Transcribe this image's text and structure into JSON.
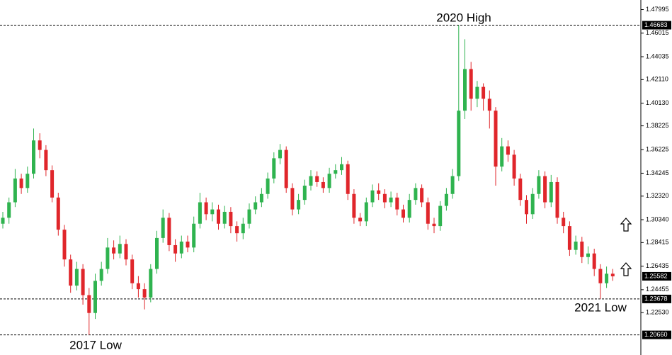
{
  "chart_data": {
    "type": "candlestick",
    "up_color": "#2fb34f",
    "down_color": "#e0262b",
    "ylim": [
      1.201,
      1.488
    ],
    "yticks": [
      1.47995,
      1.46015,
      1.44035,
      {
        "value": 1.4211,
        "label": "1.42110"
      },
      {
        "value": 1.4013,
        "label": "1.40130"
      },
      1.38225,
      1.36225,
      1.34245,
      {
        "value": 1.3232,
        "label": "1.32320"
      },
      {
        "value": 1.3034,
        "label": "1.30340"
      },
      1.28415,
      1.26435,
      1.24455,
      {
        "value": 1.2253,
        "label": "1.22530"
      }
    ],
    "levels": [
      1.46683,
      1.23678,
      {
        "value": 1.2066,
        "label": "1.20660"
      }
    ],
    "annotations": [
      "2020 High",
      "2021 Low",
      "2017 Low"
    ],
    "open": [
      1.3,
      1.305,
      1.318,
      1.338,
      1.33,
      1.342,
      1.37,
      1.362,
      1.345,
      1.322,
      1.295,
      1.27,
      1.248,
      1.262,
      1.24,
      1.225,
      1.252,
      1.262,
      1.28,
      1.275,
      1.283,
      1.27,
      1.25,
      1.245,
      1.238,
      1.262,
      1.288,
      1.305,
      1.282,
      1.275,
      1.285,
      1.28,
      1.3,
      1.318,
      1.308,
      1.312,
      1.3,
      1.31,
      1.298,
      1.292,
      1.3,
      1.312,
      1.318,
      1.325,
      1.338,
      1.355,
      1.362,
      1.33,
      1.312,
      1.32,
      1.332,
      1.34,
      1.335,
      1.33,
      1.342,
      1.345,
      1.35,
      1.325,
      1.305,
      1.302,
      1.318,
      1.328,
      1.325,
      1.318,
      1.322,
      1.312,
      1.305,
      1.32,
      1.33,
      1.318,
      1.3,
      1.298,
      1.315,
      1.325,
      1.34,
      1.395,
      1.43,
      1.405,
      1.415,
      1.405,
      1.395,
      1.348,
      1.365,
      1.358,
      1.338,
      1.32,
      1.308,
      1.325,
      1.34,
      1.318,
      1.335,
      1.305,
      1.298,
      1.278,
      1.285,
      1.272,
      1.275,
      1.262,
      1.25,
      1.258
    ],
    "high": [
      1.31,
      1.322,
      1.346,
      1.342,
      1.348,
      1.38,
      1.376,
      1.366,
      1.349,
      1.326,
      1.299,
      1.274,
      1.268,
      1.266,
      1.246,
      1.258,
      1.268,
      1.288,
      1.286,
      1.29,
      1.287,
      1.274,
      1.256,
      1.25,
      1.266,
      1.294,
      1.312,
      1.309,
      1.287,
      1.29,
      1.29,
      1.306,
      1.326,
      1.322,
      1.318,
      1.316,
      1.315,
      1.314,
      1.302,
      1.305,
      1.317,
      1.323,
      1.33,
      1.343,
      1.36,
      1.367,
      1.365,
      1.334,
      1.325,
      1.337,
      1.345,
      1.344,
      1.339,
      1.347,
      1.35,
      1.356,
      1.353,
      1.329,
      1.309,
      1.322,
      1.333,
      1.334,
      1.329,
      1.327,
      1.326,
      1.316,
      1.325,
      1.334,
      1.333,
      1.322,
      1.305,
      1.319,
      1.33,
      1.346,
      1.46683,
      1.455,
      1.436,
      1.42,
      1.418,
      1.412,
      1.398,
      1.372,
      1.37,
      1.362,
      1.342,
      1.324,
      1.33,
      1.345,
      1.344,
      1.341,
      1.339,
      1.31,
      1.302,
      1.29,
      1.289,
      1.281,
      1.279,
      1.266,
      1.264,
      1.262
    ],
    "low": [
      1.296,
      1.3,
      1.314,
      1.325,
      1.326,
      1.338,
      1.355,
      1.34,
      1.318,
      1.29,
      1.264,
      1.242,
      1.244,
      1.232,
      1.2066,
      1.22,
      1.248,
      1.258,
      1.27,
      1.271,
      1.265,
      1.245,
      1.238,
      1.228,
      1.234,
      1.258,
      1.284,
      1.277,
      1.268,
      1.271,
      1.276,
      1.276,
      1.296,
      1.303,
      1.302,
      1.295,
      1.296,
      1.292,
      1.285,
      1.287,
      1.296,
      1.308,
      1.314,
      1.321,
      1.334,
      1.35,
      1.326,
      1.307,
      1.308,
      1.316,
      1.328,
      1.331,
      1.326,
      1.326,
      1.338,
      1.341,
      1.32,
      1.3,
      1.298,
      1.298,
      1.314,
      1.32,
      1.313,
      1.314,
      1.307,
      1.301,
      1.301,
      1.316,
      1.314,
      1.295,
      1.292,
      1.294,
      1.311,
      1.321,
      1.336,
      1.388,
      1.395,
      1.398,
      1.395,
      1.38,
      1.332,
      1.344,
      1.352,
      1.332,
      1.315,
      1.3,
      1.304,
      1.321,
      1.313,
      1.314,
      1.3,
      1.292,
      1.273,
      1.274,
      1.267,
      1.266,
      1.256,
      1.23678,
      1.246,
      1.252
    ],
    "close": [
      1.305,
      1.318,
      1.338,
      1.33,
      1.342,
      1.37,
      1.362,
      1.345,
      1.322,
      1.295,
      1.27,
      1.248,
      1.262,
      1.24,
      1.225,
      1.252,
      1.262,
      1.28,
      1.275,
      1.283,
      1.27,
      1.25,
      1.245,
      1.238,
      1.262,
      1.288,
      1.305,
      1.282,
      1.275,
      1.285,
      1.28,
      1.3,
      1.318,
      1.308,
      1.312,
      1.3,
      1.31,
      1.298,
      1.292,
      1.3,
      1.312,
      1.318,
      1.325,
      1.338,
      1.355,
      1.362,
      1.33,
      1.312,
      1.32,
      1.332,
      1.34,
      1.335,
      1.33,
      1.342,
      1.345,
      1.35,
      1.325,
      1.305,
      1.302,
      1.318,
      1.328,
      1.325,
      1.318,
      1.322,
      1.312,
      1.305,
      1.32,
      1.33,
      1.318,
      1.3,
      1.298,
      1.315,
      1.325,
      1.34,
      1.395,
      1.43,
      1.405,
      1.415,
      1.405,
      1.395,
      1.348,
      1.365,
      1.358,
      1.338,
      1.32,
      1.308,
      1.325,
      1.34,
      1.318,
      1.335,
      1.305,
      1.298,
      1.278,
      1.285,
      1.272,
      1.275,
      1.262,
      1.25,
      1.258,
      1.25582
    ]
  }
}
